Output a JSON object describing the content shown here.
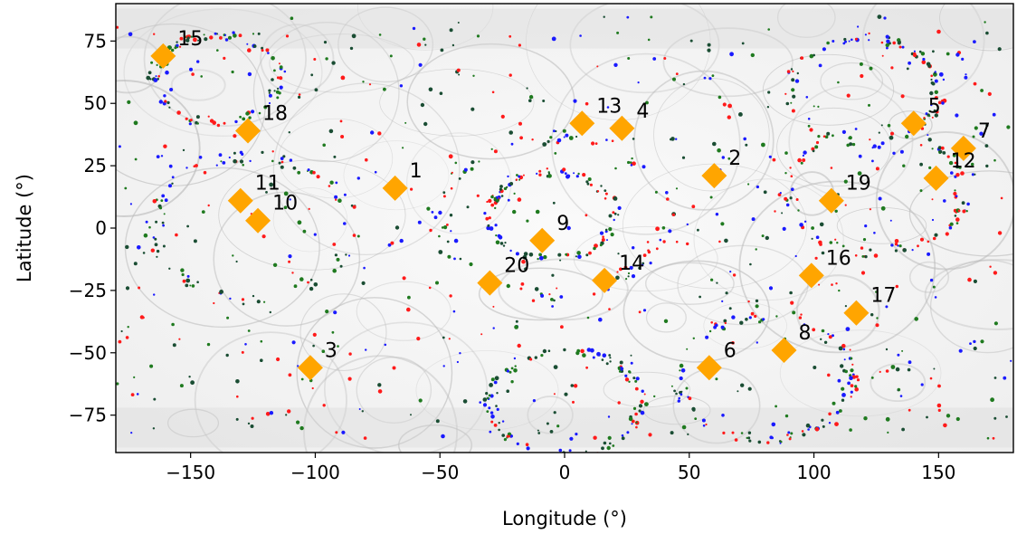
{
  "chart_data": {
    "type": "scatter",
    "title": "",
    "xlabel": "Longitude (°)",
    "ylabel": "Latitude (°)",
    "xlim": [
      -180,
      180
    ],
    "ylim": [
      -90,
      90
    ],
    "xticks": [
      -150,
      -100,
      -50,
      0,
      50,
      100,
      150
    ],
    "yticks": [
      -75,
      -50,
      -25,
      0,
      25,
      50,
      75
    ],
    "xtick_labels": [
      "−150",
      "−100",
      "−50",
      "0",
      "50",
      "100",
      "150"
    ],
    "ytick_labels": [
      "−75",
      "−50",
      "−25",
      "0",
      "25",
      "50",
      "75"
    ],
    "grid": false,
    "background": "grayscale planetary surface map",
    "dot_colors": [
      "#ff1a1a",
      "#1a1aff",
      "#1f7a1f",
      "#1a4d33"
    ],
    "marker_color": "#ffa500",
    "markers": [
      {
        "label": "1",
        "lon": -68,
        "lat": 16
      },
      {
        "label": "2",
        "lon": 60,
        "lat": 21
      },
      {
        "label": "3",
        "lon": -102,
        "lat": -56
      },
      {
        "label": "4",
        "lon": 23,
        "lat": 40
      },
      {
        "label": "5",
        "lon": 140,
        "lat": 42
      },
      {
        "label": "6",
        "lon": 58,
        "lat": -56
      },
      {
        "label": "7",
        "lon": 160,
        "lat": 32
      },
      {
        "label": "8",
        "lon": 88,
        "lat": -49
      },
      {
        "label": "9",
        "lon": -9,
        "lat": -5
      },
      {
        "label": "10",
        "lon": -123,
        "lat": 3
      },
      {
        "label": "11",
        "lon": -130,
        "lat": 11
      },
      {
        "label": "12",
        "lon": 149,
        "lat": 20
      },
      {
        "label": "13",
        "lon": 7,
        "lat": 42
      },
      {
        "label": "14",
        "lon": 16,
        "lat": -21
      },
      {
        "label": "15",
        "lon": -161,
        "lat": 69
      },
      {
        "label": "16",
        "lon": 99,
        "lat": -19
      },
      {
        "label": "17",
        "lon": 117,
        "lat": -34
      },
      {
        "label": "18",
        "lon": -127,
        "lat": 39
      },
      {
        "label": "19",
        "lon": 107,
        "lat": 11
      },
      {
        "label": "20",
        "lon": -30,
        "lat": -22
      }
    ]
  }
}
